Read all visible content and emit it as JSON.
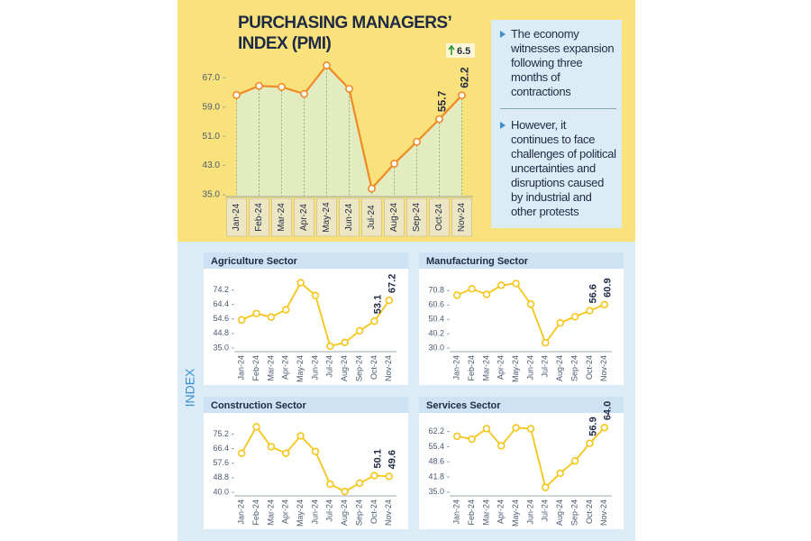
{
  "chart_data": [
    {
      "type": "line",
      "title": "PURCHASING MANAGERS’ INDEX (PMI)",
      "categories": [
        "Jan-24",
        "Feb-24",
        "Mar-24",
        "Apr-24",
        "May-24",
        "Jun-24",
        "Jul-24",
        "Aug-24",
        "Sep-24",
        "Oct-24",
        "Nov-24"
      ],
      "values": [
        62.3,
        64.8,
        64.5,
        62.6,
        70.4,
        64.0,
        36.7,
        43.5,
        49.5,
        55.7,
        62.2
      ],
      "value_labels": [
        null,
        null,
        null,
        null,
        null,
        null,
        null,
        null,
        null,
        "55.7",
        "62.2"
      ],
      "annotation": "6.5",
      "ylim": [
        34.5,
        73.5
      ],
      "yticks": [
        {
          "value": 35,
          "label": "35.0"
        },
        {
          "value": 43,
          "label": "43.0"
        },
        {
          "value": 51,
          "label": "51.0"
        },
        {
          "value": 59,
          "label": "59.0"
        },
        {
          "value": 67,
          "label": "67.0"
        }
      ],
      "color": "#f08a24",
      "area_color": "#e3ebc0"
    },
    {
      "type": "line",
      "title": "Agriculture Sector",
      "categories": [
        "Jan-24",
        "Feb-24",
        "Mar-24",
        "Apr-24",
        "May-24",
        "Jun-24",
        "Jul-24",
        "Aug-24",
        "Sep-24",
        "Oct-24",
        "Nov-24"
      ],
      "values": [
        54.0,
        58.3,
        55.9,
        60.8,
        79.1,
        70.5,
        36.2,
        38.7,
        46.6,
        53.1,
        67.2
      ],
      "value_labels": [
        null,
        null,
        null,
        null,
        null,
        null,
        null,
        null,
        null,
        "53.1",
        "67.2"
      ],
      "ylim": [
        32.5,
        82.5
      ],
      "yticks": [
        {
          "value": 35,
          "label": "35.0"
        },
        44.8,
        54.6,
        64.4,
        74.2
      ],
      "color": "#f5c518"
    },
    {
      "type": "line",
      "title": "Manufacturing Sector",
      "categories": [
        "Jan-24",
        "Feb-24",
        "Mar-24",
        "Apr-24",
        "May-24",
        "Jun-24",
        "Jul-24",
        "Aug-24",
        "Sep-24",
        "Oct-24",
        "Nov-24"
      ],
      "values": [
        67.6,
        72.1,
        68.2,
        74.6,
        75.9,
        61.2,
        33.8,
        47.9,
        52.3,
        56.6,
        60.9
      ],
      "value_labels": [
        null,
        null,
        null,
        null,
        null,
        null,
        null,
        null,
        null,
        "56.6",
        "60.9"
      ],
      "ylim": [
        27.5,
        80
      ],
      "yticks": [
        {
          "value": 30,
          "label": "30.0"
        },
        40.2,
        50.4,
        60.6,
        70.8
      ],
      "color": "#f5c518"
    },
    {
      "type": "line",
      "title": "Construction Sector",
      "categories": [
        "Jan-24",
        "Feb-24",
        "Mar-24",
        "Apr-24",
        "May-24",
        "Jun-24",
        "Jul-24",
        "Aug-24",
        "Sep-24",
        "Oct-24",
        "Nov-24"
      ],
      "values": [
        63.6,
        79.6,
        67.5,
        63.6,
        74.1,
        64.7,
        44.9,
        40.5,
        45.5,
        50.1,
        49.6
      ],
      "value_labels": [
        null,
        null,
        null,
        null,
        null,
        null,
        null,
        null,
        null,
        "50.1",
        "49.6"
      ],
      "ylim": [
        37.8,
        82.5
      ],
      "yticks": [
        {
          "value": 40,
          "label": "40.0"
        },
        48.8,
        57.6,
        66.4,
        75.2
      ],
      "color": "#f5c518"
    },
    {
      "type": "line",
      "title": "Services Sector",
      "categories": [
        "Jan-24",
        "Feb-24",
        "Mar-24",
        "Apr-24",
        "May-24",
        "Jun-24",
        "Jul-24",
        "Aug-24",
        "Sep-24",
        "Oct-24",
        "Nov-24"
      ],
      "values": [
        60.1,
        58.8,
        63.5,
        55.8,
        63.9,
        63.5,
        37.1,
        43.5,
        49.0,
        56.9,
        64.0
      ],
      "value_labels": [
        null,
        null,
        null,
        null,
        null,
        null,
        null,
        null,
        null,
        "56.9",
        "64.0"
      ],
      "ylim": [
        33.3,
        66.5
      ],
      "yticks": [
        {
          "value": 35,
          "label": "35.0"
        },
        41.8,
        48.6,
        55.4,
        62.2
      ],
      "color": "#f5c518"
    }
  ],
  "sidebar": {
    "bullets": [
      "The economy witnesses expansion following three months of contractions",
      "However, it continues to face challenges of political uncertainties and disruptions caused by industrial and other protests"
    ]
  },
  "panel_label": "INDEX"
}
